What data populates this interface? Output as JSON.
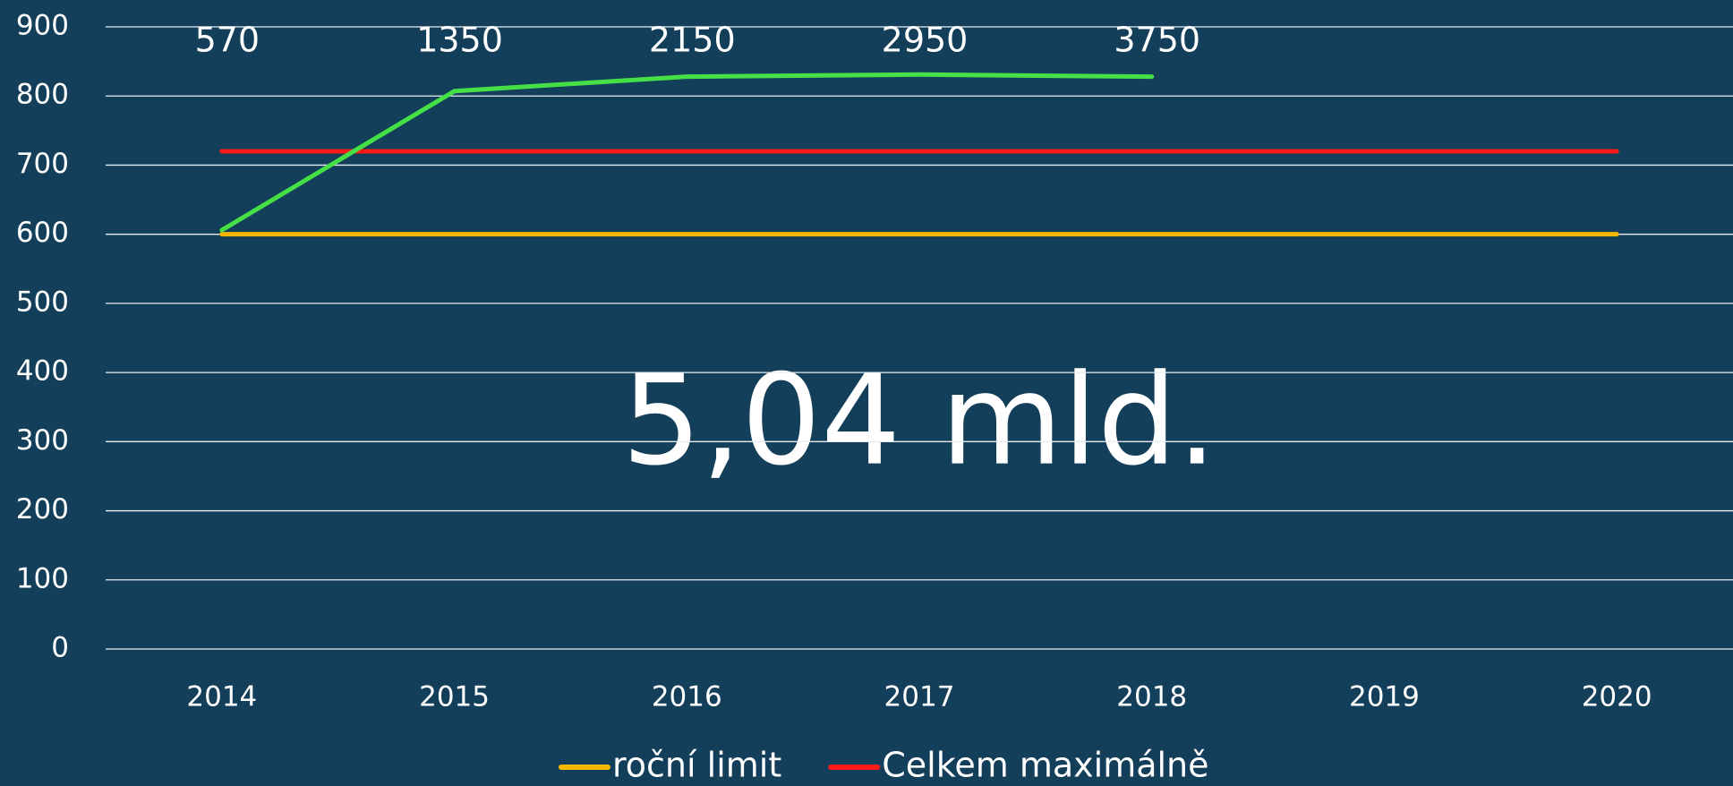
{
  "chart_data": {
    "type": "line",
    "categories": [
      "2014",
      "2015",
      "2016",
      "2017",
      "2018",
      "2019",
      "2020"
    ],
    "series": [
      {
        "name": "roční limit",
        "color": "#f5b800",
        "values": [
          600,
          600,
          600,
          600,
          600,
          600,
          600
        ]
      },
      {
        "name": "Celkem maximálně",
        "color": "#ff1a1a",
        "values": [
          720,
          720,
          720,
          720,
          720,
          720,
          720
        ]
      },
      {
        "color": "#45e045",
        "values": [
          606,
          807,
          828,
          831,
          828,
          null,
          null
        ]
      }
    ],
    "data_labels": [
      "570",
      "1350",
      "2150",
      "2950",
      "3750"
    ],
    "annotation": "5,04 mld.",
    "ylim": [
      0,
      900
    ],
    "yticks": [
      0,
      100,
      200,
      300,
      400,
      500,
      600,
      700,
      800,
      900
    ],
    "grid": true
  }
}
